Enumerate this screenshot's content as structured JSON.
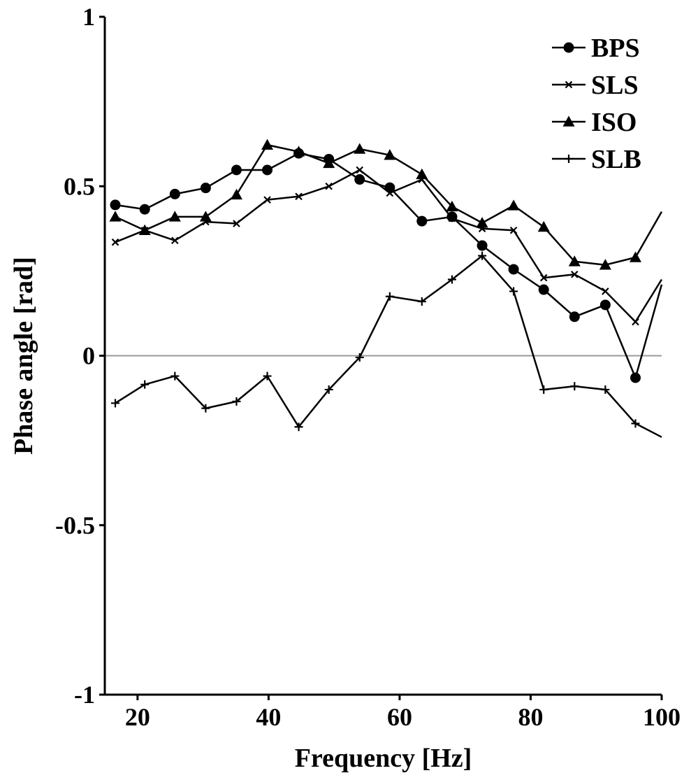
{
  "chart_data": {
    "type": "line",
    "title": "",
    "xlabel": "Frequency [Hz]",
    "ylabel": "Phase angle [rad]",
    "xlim": [
      15,
      100
    ],
    "ylim": [
      -1,
      1
    ],
    "x_ticks": [
      20,
      40,
      60,
      80,
      100
    ],
    "y_ticks": [
      1,
      0.5,
      0,
      -0.5,
      -1
    ],
    "x_tick_labels": [
      "20",
      "40",
      "60",
      "80",
      "100"
    ],
    "y_tick_labels": [
      "1",
      "0.5",
      "0",
      "-0.5",
      "-1"
    ],
    "grid": false,
    "reference_line_y": 0,
    "legend_position": "top-right",
    "series": [
      {
        "name": "BPS",
        "marker": "circle",
        "points": [
          [
            16.6,
            0.445
          ],
          [
            21.1,
            0.432
          ],
          [
            25.7,
            0.477
          ],
          [
            30.4,
            0.495
          ],
          [
            35.1,
            0.548
          ],
          [
            39.8,
            0.548
          ],
          [
            44.6,
            0.597
          ],
          [
            49.2,
            0.58
          ],
          [
            53.9,
            0.52
          ],
          [
            58.5,
            0.496
          ],
          [
            63.4,
            0.397
          ],
          [
            68.0,
            0.41
          ],
          [
            72.6,
            0.325
          ],
          [
            77.4,
            0.255
          ],
          [
            82.0,
            0.195
          ],
          [
            86.7,
            0.115
          ],
          [
            91.4,
            0.15
          ],
          [
            96.0,
            -0.065
          ],
          [
            100.0,
            0.21
          ]
        ]
      },
      {
        "name": "SLS",
        "marker": "x",
        "points": [
          [
            16.6,
            0.335
          ],
          [
            21.1,
            0.37
          ],
          [
            25.7,
            0.34
          ],
          [
            30.4,
            0.395
          ],
          [
            35.1,
            0.39
          ],
          [
            39.8,
            0.46
          ],
          [
            44.6,
            0.47
          ],
          [
            49.2,
            0.5
          ],
          [
            53.9,
            0.548
          ],
          [
            58.5,
            0.48
          ],
          [
            63.4,
            0.52
          ],
          [
            68.0,
            0.405
          ],
          [
            72.6,
            0.375
          ],
          [
            77.4,
            0.37
          ],
          [
            82.0,
            0.23
          ],
          [
            86.7,
            0.24
          ],
          [
            91.4,
            0.19
          ],
          [
            96.0,
            0.1
          ],
          [
            100.0,
            0.225
          ]
        ]
      },
      {
        "name": "ISO",
        "marker": "triangle",
        "points": [
          [
            16.6,
            0.41
          ],
          [
            21.1,
            0.37
          ],
          [
            25.7,
            0.41
          ],
          [
            30.4,
            0.41
          ],
          [
            35.1,
            0.475
          ],
          [
            39.8,
            0.622
          ],
          [
            44.6,
            0.602
          ],
          [
            49.2,
            0.568
          ],
          [
            53.9,
            0.61
          ],
          [
            58.5,
            0.592
          ],
          [
            63.4,
            0.535
          ],
          [
            68.0,
            0.44
          ],
          [
            72.6,
            0.392
          ],
          [
            77.4,
            0.443
          ],
          [
            82.0,
            0.38
          ],
          [
            86.7,
            0.278
          ],
          [
            91.4,
            0.268
          ],
          [
            96.0,
            0.29
          ],
          [
            100.0,
            0.425
          ]
        ]
      },
      {
        "name": "SLB",
        "marker": "plus",
        "points": [
          [
            16.6,
            -0.14
          ],
          [
            21.1,
            -0.085
          ],
          [
            25.7,
            -0.06
          ],
          [
            30.4,
            -0.155
          ],
          [
            35.1,
            -0.135
          ],
          [
            39.8,
            -0.06
          ],
          [
            44.6,
            -0.21
          ],
          [
            49.2,
            -0.1
          ],
          [
            53.9,
            -0.005
          ],
          [
            58.5,
            0.175
          ],
          [
            63.4,
            0.16
          ],
          [
            68.0,
            0.225
          ],
          [
            72.6,
            0.295
          ],
          [
            77.4,
            0.19
          ],
          [
            82.0,
            -0.1
          ],
          [
            86.7,
            -0.09
          ],
          [
            91.4,
            -0.1
          ],
          [
            96.0,
            -0.2
          ],
          [
            100.0,
            -0.24
          ]
        ]
      }
    ]
  }
}
